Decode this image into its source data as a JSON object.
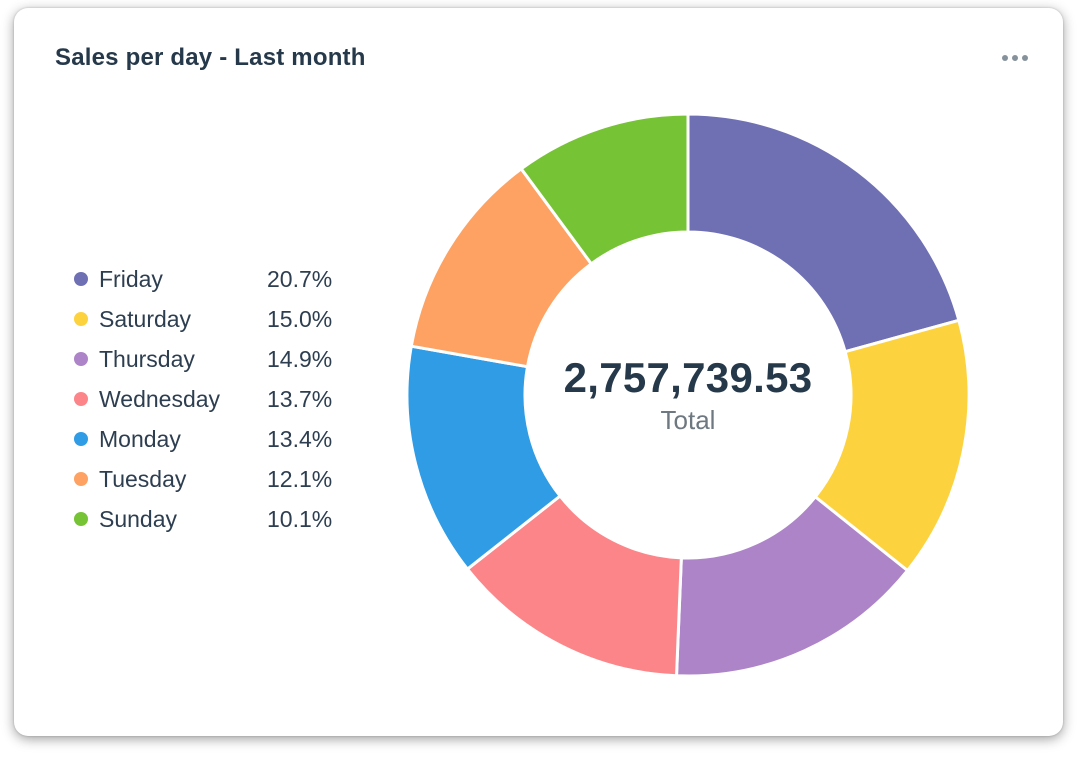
{
  "card": {
    "title": "Sales per day - Last month",
    "menu_icon": "ellipsis-horizontal-icon"
  },
  "chart_data": {
    "type": "pie",
    "subtype": "donut",
    "title": "Sales per day - Last month",
    "categories": [
      "Friday",
      "Saturday",
      "Thursday",
      "Wednesday",
      "Monday",
      "Tuesday",
      "Sunday"
    ],
    "values": [
      20.7,
      15.0,
      14.9,
      13.7,
      13.4,
      12.1,
      10.1
    ],
    "unit": "%",
    "legend_position": "left",
    "start_angle": "12-oclock-clockwise",
    "center": {
      "total_value": "2,757,739.53",
      "total_label": "Total"
    },
    "items": [
      {
        "label": "Friday",
        "pct": 20.7,
        "pct_label": "20.7%",
        "color": "#6f70b3"
      },
      {
        "label": "Saturday",
        "pct": 15.0,
        "pct_label": "15.0%",
        "color": "#fdd23f"
      },
      {
        "label": "Thursday",
        "pct": 14.9,
        "pct_label": "14.9%",
        "color": "#ad84c8"
      },
      {
        "label": "Wednesday",
        "pct": 13.7,
        "pct_label": "13.7%",
        "color": "#fc8589"
      },
      {
        "label": "Monday",
        "pct": 13.4,
        "pct_label": "13.4%",
        "color": "#2f9ce5"
      },
      {
        "label": "Tuesday",
        "pct": 12.1,
        "pct_label": "12.1%",
        "color": "#fda263"
      },
      {
        "label": "Sunday",
        "pct": 10.1,
        "pct_label": "10.1%",
        "color": "#76c336"
      }
    ]
  },
  "colors": {
    "card_background": "#ffffff",
    "title_text": "#26394b",
    "legend_text": "#2d3e50",
    "total_text": "#26394b",
    "total_label_text": "#6e7880",
    "menu_dots": "#86929b",
    "segment_gap_stroke": "#ffffff"
  }
}
